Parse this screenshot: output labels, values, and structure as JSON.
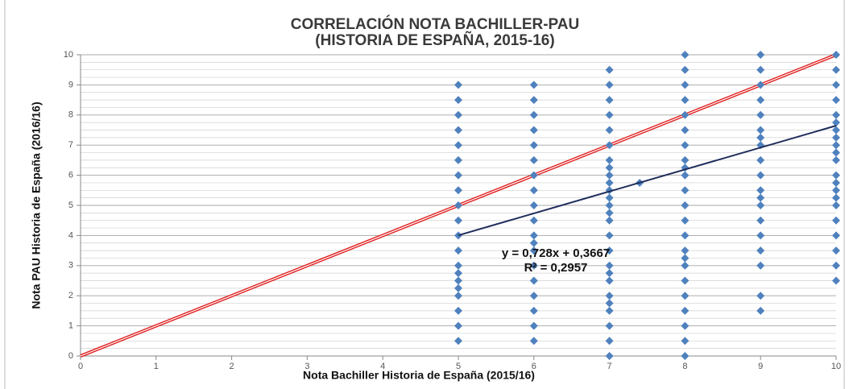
{
  "chart_data": {
    "type": "scatter",
    "title": [
      "CORRELACIÓN NOTA BACHILLER-PAU",
      "(HISTORIA DE ESPAÑA, 2015-16)"
    ],
    "xlabel": "Nota Bachiller Historia de España (2015/16)",
    "ylabel": "Nota PAU Historia de España (2016/16)",
    "xlim": [
      0,
      10
    ],
    "ylim": [
      0,
      10
    ],
    "xticks": [
      0,
      1,
      2,
      3,
      4,
      5,
      6,
      7,
      8,
      9,
      10
    ],
    "yticks": [
      0,
      1,
      2,
      3,
      4,
      5,
      6,
      7,
      8,
      9,
      10
    ],
    "grid": true,
    "y_minor_grid_step": 0.25,
    "series": [
      {
        "color": "#4f81bd",
        "x": [
          5,
          5,
          5,
          5,
          5,
          5,
          5,
          5,
          5,
          5,
          5,
          5,
          5,
          5,
          5,
          5,
          5,
          5,
          5,
          5,
          6,
          6,
          6,
          6,
          6,
          6,
          6,
          6,
          6,
          6,
          6,
          6,
          6,
          6,
          6,
          6,
          6,
          6,
          6,
          7,
          7,
          7,
          7,
          7,
          7,
          7,
          7,
          7,
          7,
          7,
          7,
          7,
          7,
          7,
          7,
          7,
          7,
          7,
          7,
          7,
          7,
          7,
          7,
          7,
          7,
          7.4,
          8,
          8,
          8,
          8,
          8,
          8,
          8,
          8,
          8,
          8,
          8,
          8,
          8,
          8,
          8,
          8,
          8,
          8,
          8,
          8,
          8,
          8,
          8,
          9,
          9,
          9,
          9,
          9,
          9,
          9,
          9,
          9,
          9,
          9,
          9,
          9,
          9,
          9,
          9,
          9,
          9,
          9,
          10,
          10,
          10,
          10,
          10,
          10,
          10,
          10,
          10,
          10,
          10,
          10,
          10,
          10,
          10,
          10,
          10,
          10,
          10,
          10,
          10
        ],
        "y": [
          9,
          8.5,
          8,
          7.5,
          7,
          6.5,
          6,
          5.5,
          5,
          4.5,
          4,
          3.5,
          3,
          2.75,
          2.5,
          2.25,
          2,
          1.5,
          1,
          0.5,
          9,
          8.5,
          8,
          7.5,
          7,
          6.5,
          6,
          5.5,
          5,
          4.5,
          4,
          3.75,
          3.5,
          3,
          2.5,
          2,
          1.5,
          1,
          0.5,
          9.5,
          9,
          8.5,
          8,
          7.5,
          7,
          6.5,
          6.25,
          6,
          5.75,
          5.5,
          5.25,
          5,
          4.75,
          4.5,
          4,
          3.5,
          3,
          2.75,
          2.5,
          2,
          1.75,
          1.5,
          1,
          0.5,
          0,
          5.75,
          10,
          9.5,
          9,
          8.5,
          8,
          7.5,
          7,
          6.5,
          6.25,
          6,
          5.5,
          5,
          4.5,
          4,
          3.5,
          3.25,
          3,
          2.5,
          2,
          1.5,
          1,
          0.5,
          0,
          10,
          9.5,
          9,
          8.5,
          8,
          7.5,
          7.25,
          7,
          6.5,
          6,
          5.5,
          5.25,
          5,
          4.5,
          4,
          3.5,
          3,
          2,
          1.5,
          10,
          9.5,
          9,
          8.5,
          8,
          7.75,
          7.5,
          7.25,
          7,
          6.75,
          6.5,
          6,
          5.75,
          5.5,
          5.25,
          5,
          4.5,
          4,
          3.5,
          3,
          2.5
        ]
      }
    ],
    "reference_line": {
      "slope": 1,
      "intercept": 0,
      "x_range": [
        0,
        10
      ],
      "color": "#e02020"
    },
    "trendline": {
      "slope": 0.728,
      "intercept": 0.3667,
      "x_range": [
        5,
        10
      ],
      "color": "#1f2d5c"
    },
    "annotations": [
      "y = 0,728x + 0,3667",
      "R² = 0,2957"
    ]
  }
}
